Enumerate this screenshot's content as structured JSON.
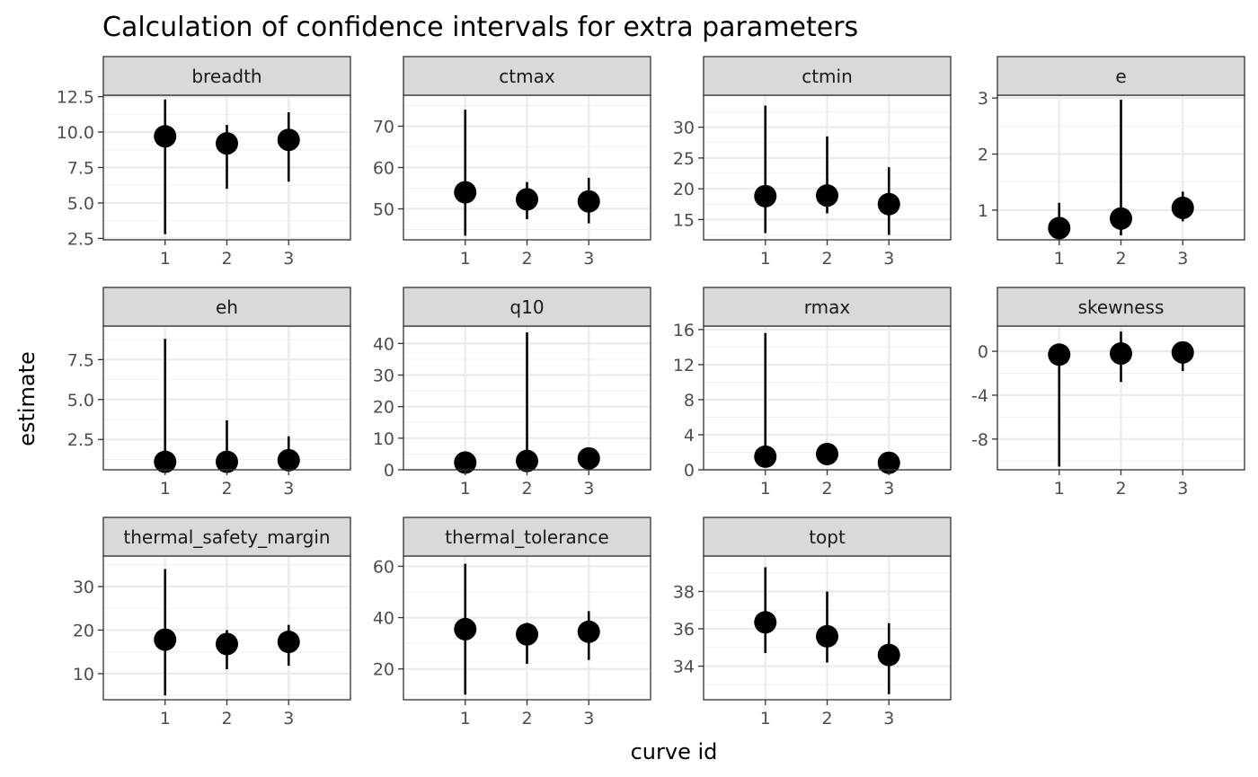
{
  "chart_data": {
    "type": "pointrange",
    "title": "Calculation of confidence intervals for extra parameters",
    "xlabel": "curve id",
    "ylabel": "estimate",
    "x_ticks": [
      "1",
      "2",
      "3"
    ],
    "grid": true,
    "colors": {
      "point": "#000000",
      "strip_bg": "#d9d9d9",
      "strip_border": "#333333",
      "panel_border": "#333333",
      "grid_major": "#ebebeb",
      "grid_minor": "#f2f2f2",
      "tick_text": "#4d4d4d",
      "text": "#000000"
    },
    "panels": [
      {
        "name": "breadth",
        "ylim": [
          2.4,
          12.6
        ],
        "ticks": [
          2.5,
          5.0,
          7.5,
          10.0,
          12.5
        ],
        "tick_labels": [
          "2.5",
          "5.0",
          "7.5",
          "10.0",
          "12.5"
        ],
        "estimates": [
          9.7,
          9.2,
          9.45
        ],
        "lower": [
          2.8,
          6.0,
          6.5
        ],
        "upper": [
          12.3,
          10.5,
          11.4
        ]
      },
      {
        "name": "ctmax",
        "ylim": [
          42.5,
          77.5
        ],
        "ticks": [
          50,
          60,
          70
        ],
        "tick_labels": [
          "50",
          "60",
          "70"
        ],
        "estimates": [
          54.0,
          52.3,
          51.8
        ],
        "lower": [
          43.5,
          47.5,
          46.5
        ],
        "upper": [
          74.0,
          56.5,
          57.5
        ]
      },
      {
        "name": "ctmin",
        "ylim": [
          11.7,
          35.2
        ],
        "ticks": [
          15,
          20,
          25,
          30
        ],
        "tick_labels": [
          "15",
          "20",
          "25",
          "30"
        ],
        "estimates": [
          18.8,
          18.9,
          17.5
        ],
        "lower": [
          12.8,
          16.0,
          12.5
        ],
        "upper": [
          33.5,
          28.5,
          23.5
        ]
      },
      {
        "name": "e",
        "ylim": [
          0.47,
          3.05
        ],
        "ticks": [
          1,
          2,
          3
        ],
        "tick_labels": [
          "1",
          "2",
          "3"
        ],
        "estimates": [
          0.68,
          0.85,
          1.04
        ],
        "lower": [
          0.47,
          0.55,
          0.8
        ],
        "upper": [
          1.13,
          2.97,
          1.33
        ]
      },
      {
        "name": "eh",
        "ylim": [
          0.6,
          9.6
        ],
        "ticks": [
          2.5,
          5.0,
          7.5
        ],
        "tick_labels": [
          "2.5",
          "5.0",
          "7.5"
        ],
        "estimates": [
          1.1,
          1.1,
          1.2
        ],
        "lower": [
          0.6,
          0.6,
          0.6
        ],
        "upper": [
          8.8,
          3.7,
          2.7
        ]
      },
      {
        "name": "q10",
        "ylim": [
          0,
          45.5
        ],
        "ticks": [
          0,
          10,
          20,
          30,
          40
        ],
        "tick_labels": [
          "0",
          "10",
          "20",
          "30",
          "40"
        ],
        "estimates": [
          2.3,
          2.8,
          3.6
        ],
        "lower": [
          0.8,
          1.0,
          1.5
        ],
        "upper": [
          3.5,
          43.5,
          5.0
        ]
      },
      {
        "name": "rmax",
        "ylim": [
          0,
          16.4
        ],
        "ticks": [
          0,
          4,
          8,
          12,
          16
        ],
        "tick_labels": [
          "0",
          "4",
          "8",
          "12",
          "16"
        ],
        "estimates": [
          1.5,
          1.8,
          0.8
        ],
        "lower": [
          0.4,
          0.6,
          0.2
        ],
        "upper": [
          15.6,
          2.2,
          1.1
        ]
      },
      {
        "name": "skewness",
        "ylim": [
          -10.8,
          2.3
        ],
        "ticks": [
          -8,
          -4,
          0
        ],
        "tick_labels": [
          "-8",
          "-4",
          "0"
        ],
        "estimates": [
          -0.3,
          -0.2,
          -0.1
        ],
        "lower": [
          -10.5,
          -2.8,
          -1.8
        ],
        "upper": [
          0.3,
          1.8,
          0.3
        ]
      },
      {
        "name": "thermal_safety_margin",
        "ylim": [
          4.0,
          37.0
        ],
        "ticks": [
          10,
          20,
          30
        ],
        "tick_labels": [
          "10",
          "20",
          "30"
        ],
        "estimates": [
          17.8,
          16.8,
          17.3
        ],
        "lower": [
          5.0,
          11.0,
          11.8
        ],
        "upper": [
          34.0,
          20.0,
          21.2
        ]
      },
      {
        "name": "thermal_tolerance",
        "ylim": [
          8.0,
          64.0
        ],
        "ticks": [
          20,
          40,
          60
        ],
        "tick_labels": [
          "20",
          "40",
          "60"
        ],
        "estimates": [
          35.5,
          33.5,
          34.5
        ],
        "lower": [
          10.0,
          22.0,
          23.5
        ],
        "upper": [
          61.0,
          38.0,
          42.5
        ]
      },
      {
        "name": "topt",
        "ylim": [
          32.2,
          39.9
        ],
        "ticks": [
          34,
          36,
          38
        ],
        "tick_labels": [
          "34",
          "36",
          "38"
        ],
        "estimates": [
          36.35,
          35.6,
          34.6
        ],
        "lower": [
          34.7,
          34.2,
          32.5
        ],
        "upper": [
          39.3,
          38.0,
          36.3
        ]
      }
    ]
  }
}
